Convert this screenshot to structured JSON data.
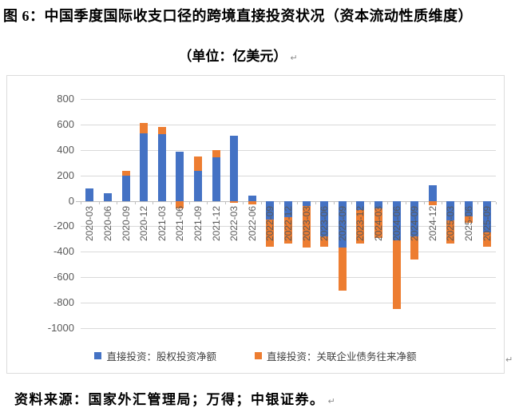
{
  "title": "图 6：中国季度国际收支口径的跨境直接投资状况（资本流动性质维度）",
  "subtitle": "（单位：亿美元）",
  "source_note": "资料来源：国家外汇管理局；万得；中银证券。",
  "paragraph_mark": "↵",
  "colors": {
    "equity": "#4472C4",
    "debt": "#ED7D31",
    "gridline": "#d9d9d9",
    "zero_axis": "#bfbfbf",
    "axis_text": "#595959",
    "legend_text": "#404040"
  },
  "chart_data": {
    "type": "bar",
    "stacked": true,
    "unit": "亿美元",
    "grid": true,
    "legend_position": "bottom",
    "ylim": [
      -1000,
      800
    ],
    "ytick_step": 200,
    "yticks": [
      800,
      600,
      400,
      200,
      0,
      -200,
      -400,
      -600,
      -800,
      -1000
    ],
    "categories": [
      "2020-03",
      "2020-06",
      "2020-09",
      "2020-12",
      "2021-03",
      "2021-06",
      "2021-09",
      "2021-12",
      "2022-03",
      "2022-06",
      "2022-09",
      "2022-12",
      "2023-03",
      "2023-06",
      "2023-09",
      "2023-12",
      "2024-03",
      "2024-06",
      "2024-09",
      "2024-12",
      "2025-03",
      "2025-06",
      "2025-09"
    ],
    "series": [
      {
        "name": "直接投资：股权投资净额",
        "color": "#4472C4",
        "values": [
          95,
          60,
          195,
          530,
          525,
          385,
          235,
          345,
          510,
          40,
          -145,
          -130,
          -40,
          -280,
          -365,
          -70,
          -60,
          -310,
          -280,
          120,
          -155,
          -120,
          -250
        ]
      },
      {
        "name": "直接投资：关联企业债务往来净额",
        "color": "#ED7D31",
        "values": [
          0,
          0,
          40,
          80,
          55,
          -60,
          115,
          55,
          -15,
          -30,
          -215,
          -205,
          -325,
          -80,
          -340,
          -265,
          -230,
          -540,
          -180,
          -35,
          -180,
          -55,
          -110
        ]
      }
    ]
  }
}
